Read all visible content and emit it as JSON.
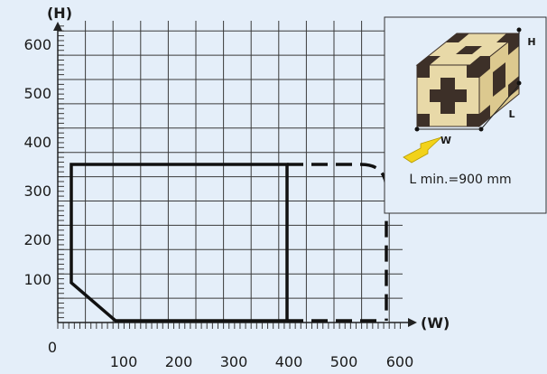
{
  "axes": {
    "y_title": "(H)",
    "x_title": "(W)",
    "origin_label": "0",
    "y_ticks": [
      "600",
      "500",
      "400",
      "300",
      "200",
      "100"
    ],
    "x_ticks": [
      "100",
      "200",
      "300",
      "400",
      "500",
      "600"
    ]
  },
  "inset": {
    "dim_h": "H",
    "dim_l": "L",
    "dim_w": "W",
    "note": "L min.=900 mm"
  },
  "colors": {
    "background": "#e4eef9",
    "grid": "#3a3a3a",
    "outline": "#111111",
    "box_light": "#e8d9a8",
    "box_dark": "#3d3028",
    "arrow": "#f2d21a"
  }
}
